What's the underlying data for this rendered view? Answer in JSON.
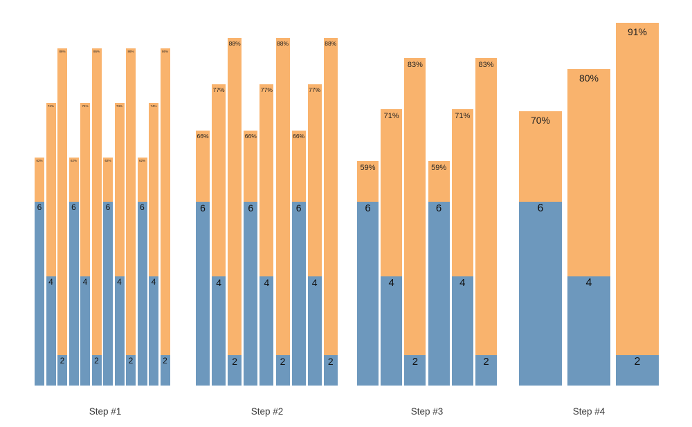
{
  "chart_data": {
    "type": "bar",
    "title": "",
    "xlabel": "",
    "ylabel": "",
    "legend": [],
    "grid": false,
    "axes_visible": false,
    "colors": {
      "kept_segment": "#6d98bd",
      "extension_segment": "#f9b36d"
    },
    "description": "Four groups of overlaid stacked bars. Blue lower segment labeled with kept value (6, 4 or 2); orange upper segment extends to a percentage labeled at the bar top. Bars per group: 12, 9, 6, 3 (repeating 6/4/2 triples).",
    "groups": [
      {
        "label": "Step #1",
        "bars": [
          {
            "keep": 6,
            "pct": 62
          },
          {
            "keep": 4,
            "pct": 74
          },
          {
            "keep": 2,
            "pct": 86
          },
          {
            "keep": 6,
            "pct": 62
          },
          {
            "keep": 4,
            "pct": 74
          },
          {
            "keep": 2,
            "pct": 86
          },
          {
            "keep": 6,
            "pct": 62
          },
          {
            "keep": 4,
            "pct": 74
          },
          {
            "keep": 2,
            "pct": 86
          },
          {
            "keep": 6,
            "pct": 62
          },
          {
            "keep": 4,
            "pct": 74
          },
          {
            "keep": 2,
            "pct": 86
          }
        ]
      },
      {
        "label": "Step #2",
        "bars": [
          {
            "keep": 6,
            "pct": 66
          },
          {
            "keep": 4,
            "pct": 77
          },
          {
            "keep": 2,
            "pct": 88
          },
          {
            "keep": 6,
            "pct": 66
          },
          {
            "keep": 4,
            "pct": 77
          },
          {
            "keep": 2,
            "pct": 88
          },
          {
            "keep": 6,
            "pct": 66
          },
          {
            "keep": 4,
            "pct": 77
          },
          {
            "keep": 2,
            "pct": 88
          }
        ]
      },
      {
        "label": "Step #3",
        "bars": [
          {
            "keep": 6,
            "pct": 59
          },
          {
            "keep": 4,
            "pct": 71
          },
          {
            "keep": 2,
            "pct": 83
          },
          {
            "keep": 6,
            "pct": 59
          },
          {
            "keep": 4,
            "pct": 71
          },
          {
            "keep": 2,
            "pct": 83
          }
        ]
      },
      {
        "label": "Step #4",
        "bars": [
          {
            "keep": 6,
            "pct": 70
          },
          {
            "keep": 4,
            "pct": 80
          },
          {
            "keep": 2,
            "pct": 91
          }
        ]
      }
    ]
  }
}
